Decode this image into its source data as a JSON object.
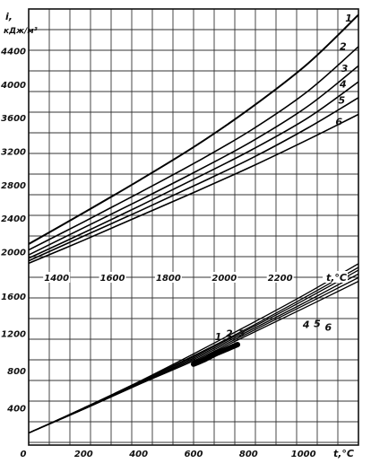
{
  "chart_data": [
    {
      "type": "line",
      "panel": "upper",
      "xlabel": "t,°C",
      "ylabel_symbol": "i,",
      "ylabel_units": "кДж/м³",
      "xlim": [
        1300,
        2480
      ],
      "ylim": [
        1800,
        4900
      ],
      "x_ticks": [
        1400,
        1600,
        1800,
        2000,
        2200
      ],
      "x_tick_labels": [
        "1400",
        "1600",
        "1800",
        "2000",
        "2200"
      ],
      "y_ticks": [
        2000,
        2400,
        2800,
        3200,
        3600,
        4000,
        4400
      ],
      "y_tick_labels": [
        "2000",
        "2400",
        "2800",
        "3200",
        "3600",
        "4000",
        "4400"
      ],
      "grid": true,
      "series": [
        {
          "name": "1",
          "x": [
            1300,
            1500,
            1700,
            1900,
            2100,
            2300,
            2480
          ],
          "y": [
            2090,
            2470,
            2860,
            3270,
            3730,
            4250,
            4830
          ]
        },
        {
          "name": "2",
          "x": [
            1300,
            1500,
            1700,
            1900,
            2100,
            2300,
            2480
          ],
          "y": [
            2020,
            2360,
            2710,
            3070,
            3460,
            3920,
            4450
          ]
        },
        {
          "name": "3",
          "x": [
            1300,
            1500,
            1700,
            1900,
            2100,
            2300,
            2480
          ],
          "y": [
            1960,
            2290,
            2620,
            2960,
            3320,
            3740,
            4220
          ]
        },
        {
          "name": "4",
          "x": [
            1300,
            1500,
            1700,
            1900,
            2100,
            2300,
            2480
          ],
          "y": [
            1920,
            2230,
            2550,
            2880,
            3220,
            3600,
            4030
          ]
        },
        {
          "name": "5",
          "x": [
            1300,
            1500,
            1700,
            1900,
            2100,
            2300,
            2480
          ],
          "y": [
            1890,
            2190,
            2490,
            2800,
            3120,
            3480,
            3840
          ]
        },
        {
          "name": "6",
          "x": [
            1300,
            1500,
            1700,
            1900,
            2100,
            2300,
            2480
          ],
          "y": [
            1860,
            2140,
            2430,
            2720,
            3020,
            3340,
            3640
          ]
        }
      ],
      "curve_labels": [
        {
          "name": "1",
          "x": 2445,
          "y": 4750
        },
        {
          "name": "2",
          "x": 2425,
          "y": 4410
        },
        {
          "name": "3",
          "x": 2430,
          "y": 4150
        },
        {
          "name": "4",
          "x": 2425,
          "y": 3960
        },
        {
          "name": "5",
          "x": 2420,
          "y": 3770
        },
        {
          "name": "6",
          "x": 2410,
          "y": 3510
        }
      ]
    },
    {
      "type": "line",
      "panel": "lower",
      "xlabel": "t,°C",
      "xlim": [
        0,
        1200
      ],
      "ylim": [
        0,
        1900
      ],
      "x_ticks": [
        0,
        200,
        400,
        600,
        800,
        1000
      ],
      "x_tick_labels": [
        "0",
        "200",
        "400",
        "600",
        "800",
        "1000"
      ],
      "y_ticks": [
        400,
        800,
        1200,
        1600
      ],
      "y_tick_labels": [
        "400",
        "800",
        "1200",
        "1600"
      ],
      "grid": true,
      "series": [
        {
          "name": "1",
          "x": [
            0,
            200,
            400,
            600,
            800,
            1000,
            1200
          ],
          "y": [
            130,
            400,
            680,
            980,
            1290,
            1610,
            1950
          ]
        },
        {
          "name": "2",
          "x": [
            0,
            200,
            400,
            600,
            800,
            1000,
            1200
          ],
          "y": [
            130,
            395,
            675,
            960,
            1260,
            1580,
            1910
          ]
        },
        {
          "name": "3",
          "x": [
            0,
            200,
            400,
            600,
            800,
            1000,
            1200
          ],
          "y": [
            130,
            395,
            670,
            950,
            1245,
            1555,
            1880
          ]
        },
        {
          "name": "4",
          "x": [
            0,
            200,
            400,
            600,
            800,
            1000,
            1200
          ],
          "y": [
            130,
            390,
            660,
            935,
            1225,
            1525,
            1840
          ]
        },
        {
          "name": "5",
          "x": [
            0,
            200,
            400,
            600,
            800,
            1000,
            1200
          ],
          "y": [
            130,
            385,
            655,
            920,
            1205,
            1500,
            1800
          ]
        },
        {
          "name": "6",
          "x": [
            0,
            200,
            400,
            600,
            800,
            1000,
            1200
          ],
          "y": [
            130,
            385,
            650,
            905,
            1185,
            1470,
            1760
          ]
        }
      ],
      "curve_labels": [
        {
          "name": "1",
          "x": 690,
          "y": 1130
        },
        {
          "name": "2",
          "x": 730,
          "y": 1160
        },
        {
          "name": "3",
          "x": 775,
          "y": 1160
        },
        {
          "name": "4",
          "x": 1010,
          "y": 1260
        },
        {
          "name": "5",
          "x": 1050,
          "y": 1270
        },
        {
          "name": "6",
          "x": 1090,
          "y": 1230
        }
      ]
    }
  ]
}
